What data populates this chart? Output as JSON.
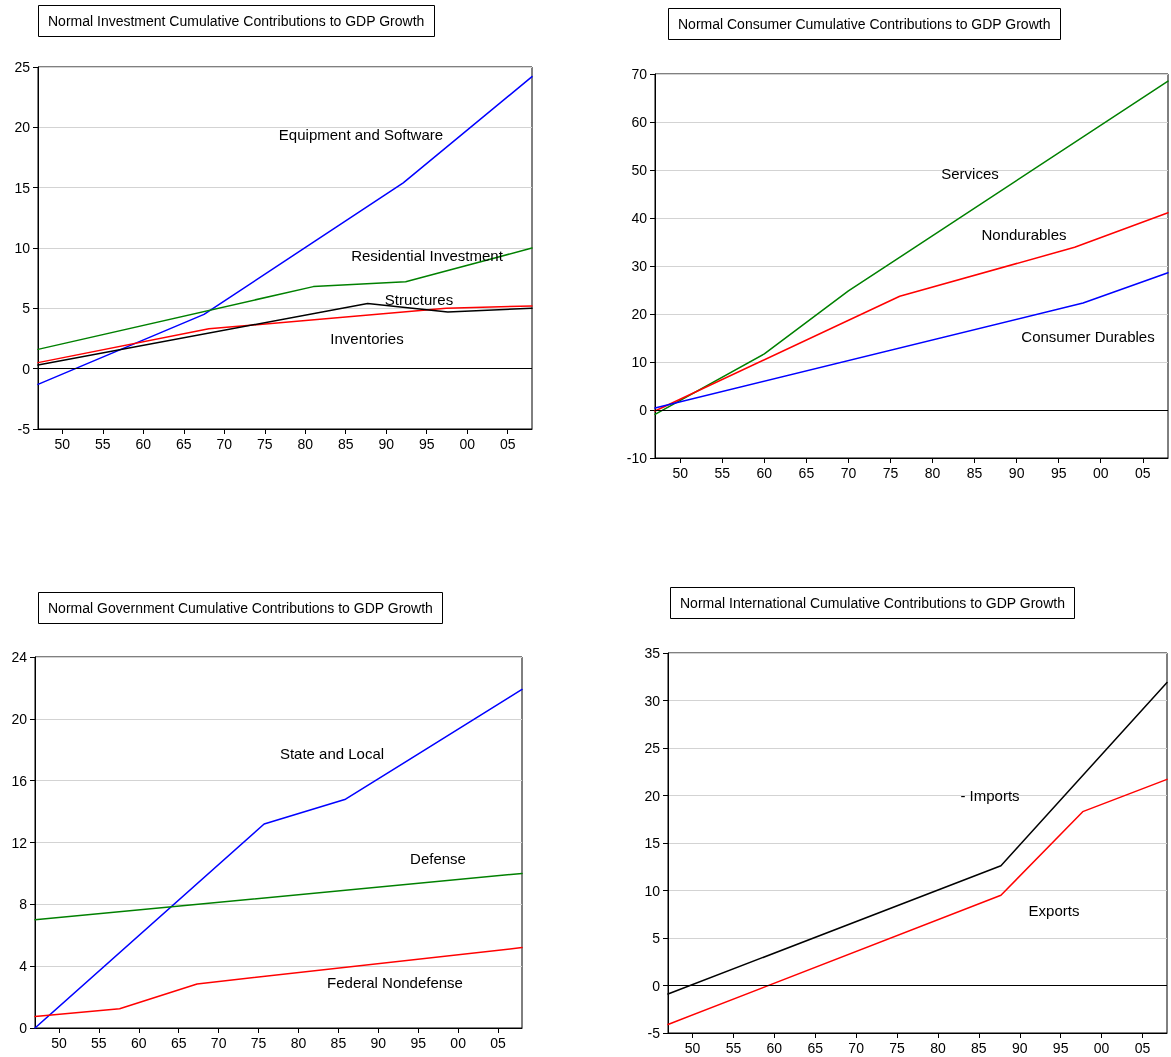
{
  "chart_data": [
    {
      "type": "line",
      "title": "Normal Investment Cumulative Contributions to GDP Growth",
      "xlim": [
        1947,
        2008
      ],
      "xticks": [
        {
          "value": 1950,
          "label": "50"
        },
        {
          "value": 1955,
          "label": "55"
        },
        {
          "value": 1960,
          "label": "60"
        },
        {
          "value": 1965,
          "label": "65"
        },
        {
          "value": 1970,
          "label": "70"
        },
        {
          "value": 1975,
          "label": "75"
        },
        {
          "value": 1980,
          "label": "80"
        },
        {
          "value": 1985,
          "label": "85"
        },
        {
          "value": 1990,
          "label": "90"
        },
        {
          "value": 1995,
          "label": "95"
        },
        {
          "value": 2000,
          "label": "00"
        },
        {
          "value": 2005,
          "label": "05"
        }
      ],
      "ylim": [
        -5,
        25
      ],
      "yticks": [
        -5,
        0,
        5,
        10,
        15,
        20,
        25
      ],
      "grid": "y",
      "marker": "none",
      "line_style": "solid",
      "ref_lines": [
        {
          "axis": "y",
          "value": 0,
          "color": "#000000"
        }
      ],
      "series": [
        {
          "color": "#0000ff",
          "x": [
            1947,
            1967.5,
            1992.1,
            2008
          ],
          "values": [
            -1.3,
            4.5,
            15.4,
            24.2
          ]
        },
        {
          "color": "#008000",
          "x": [
            1947,
            1981,
            1992.4,
            2008
          ],
          "values": [
            1.6,
            6.8,
            7.2,
            10.0
          ]
        },
        {
          "color": "#ff0000",
          "x": [
            1947,
            1968.1,
            1997.4,
            2008
          ],
          "values": [
            0.5,
            3.3,
            5.0,
            5.2
          ]
        },
        {
          "color": "#000000",
          "x": [
            1947,
            1987.7,
            1997.6,
            2008
          ],
          "values": [
            0.3,
            5.4,
            4.7,
            5.0
          ]
        }
      ],
      "annotations": [
        "Equipment and Software",
        "Residential Investment",
        "Structures",
        "Inventories"
      ]
    },
    {
      "type": "line",
      "title": "Normal Consumer Cumulative Contributions to GDP Growth",
      "xlim": [
        1947,
        2008
      ],
      "xticks": [
        {
          "value": 1950,
          "label": "50"
        },
        {
          "value": 1955,
          "label": "55"
        },
        {
          "value": 1960,
          "label": "60"
        },
        {
          "value": 1965,
          "label": "65"
        },
        {
          "value": 1970,
          "label": "70"
        },
        {
          "value": 1975,
          "label": "75"
        },
        {
          "value": 1980,
          "label": "80"
        },
        {
          "value": 1985,
          "label": "85"
        },
        {
          "value": 1990,
          "label": "90"
        },
        {
          "value": 1995,
          "label": "95"
        },
        {
          "value": 2000,
          "label": "00"
        },
        {
          "value": 2005,
          "label": "05"
        }
      ],
      "ylim": [
        -10,
        70
      ],
      "yticks": [
        -10,
        0,
        10,
        20,
        30,
        40,
        50,
        60,
        70
      ],
      "grid": "y",
      "marker": "none",
      "line_style": "solid",
      "ref_lines": [
        {
          "axis": "y",
          "value": 0,
          "color": "#000000"
        }
      ],
      "series": [
        {
          "color": "#008000",
          "x": [
            1947,
            1960,
            1970,
            2008
          ],
          "values": [
            -0.9,
            11.7,
            24.8,
            68.5
          ]
        },
        {
          "color": "#ff0000",
          "x": [
            1947,
            1976.1,
            1996.9,
            2008
          ],
          "values": [
            -0.2,
            23.7,
            33.9,
            41.1
          ]
        },
        {
          "color": "#0000ff",
          "x": [
            1947,
            1997.9,
            2008
          ],
          "values": [
            0.4,
            22.3,
            28.6
          ]
        }
      ],
      "annotations": [
        "Services",
        "Nondurables",
        "Consumer Durables"
      ]
    },
    {
      "type": "line",
      "title": "Normal Government Cumulative Contributions to GDP Growth",
      "xlim": [
        1947,
        2008
      ],
      "xticks": [
        {
          "value": 1950,
          "label": "50"
        },
        {
          "value": 1955,
          "label": "55"
        },
        {
          "value": 1960,
          "label": "60"
        },
        {
          "value": 1965,
          "label": "65"
        },
        {
          "value": 1970,
          "label": "70"
        },
        {
          "value": 1975,
          "label": "75"
        },
        {
          "value": 1980,
          "label": "80"
        },
        {
          "value": 1985,
          "label": "85"
        },
        {
          "value": 1990,
          "label": "90"
        },
        {
          "value": 1995,
          "label": "95"
        },
        {
          "value": 2000,
          "label": "00"
        },
        {
          "value": 2005,
          "label": "05"
        }
      ],
      "ylim": [
        0,
        24
      ],
      "yticks": [
        0,
        4,
        8,
        12,
        16,
        20,
        24
      ],
      "grid": "y",
      "marker": "none",
      "line_style": "solid",
      "series": [
        {
          "color": "#0000ff",
          "x": [
            1947,
            1975.7,
            1985.9,
            2008
          ],
          "values": [
            0,
            13.2,
            14.8,
            21.9
          ]
        },
        {
          "color": "#008000",
          "x": [
            1947,
            2008
          ],
          "values": [
            7.0,
            10.0
          ]
        },
        {
          "color": "#ff0000",
          "x": [
            1947,
            1957.6,
            1967.3,
            2008
          ],
          "values": [
            0.75,
            1.25,
            2.85,
            5.2
          ]
        }
      ],
      "annotations": [
        "State and Local",
        "Defense",
        "Federal Nondefense"
      ]
    },
    {
      "type": "line",
      "title": "Normal International Cumulative Contributions to GDP Growth",
      "xlim": [
        1947,
        2008
      ],
      "xticks": [
        {
          "value": 1950,
          "label": "50"
        },
        {
          "value": 1955,
          "label": "55"
        },
        {
          "value": 1960,
          "label": "60"
        },
        {
          "value": 1965,
          "label": "65"
        },
        {
          "value": 1970,
          "label": "70"
        },
        {
          "value": 1975,
          "label": "75"
        },
        {
          "value": 1980,
          "label": "80"
        },
        {
          "value": 1985,
          "label": "85"
        },
        {
          "value": 1990,
          "label": "90"
        },
        {
          "value": 1995,
          "label": "95"
        },
        {
          "value": 2000,
          "label": "00"
        },
        {
          "value": 2005,
          "label": "05"
        }
      ],
      "ylim": [
        -5,
        35
      ],
      "yticks": [
        -5,
        0,
        5,
        10,
        15,
        20,
        25,
        30,
        35
      ],
      "grid": "y",
      "marker": "none",
      "line_style": "solid",
      "ref_lines": [
        {
          "axis": "y",
          "value": 0,
          "color": "#000000"
        }
      ],
      "series": [
        {
          "color": "#000000",
          "x": [
            1947,
            1987.7,
            2008
          ],
          "values": [
            -0.9,
            12.6,
            31.9
          ]
        },
        {
          "color": "#ff0000",
          "x": [
            1947,
            1987.7,
            1997.7,
            2008
          ],
          "values": [
            -4.1,
            9.5,
            18.3,
            21.7
          ]
        }
      ],
      "annotations": [
        "- Imports",
        "Exports"
      ]
    }
  ]
}
